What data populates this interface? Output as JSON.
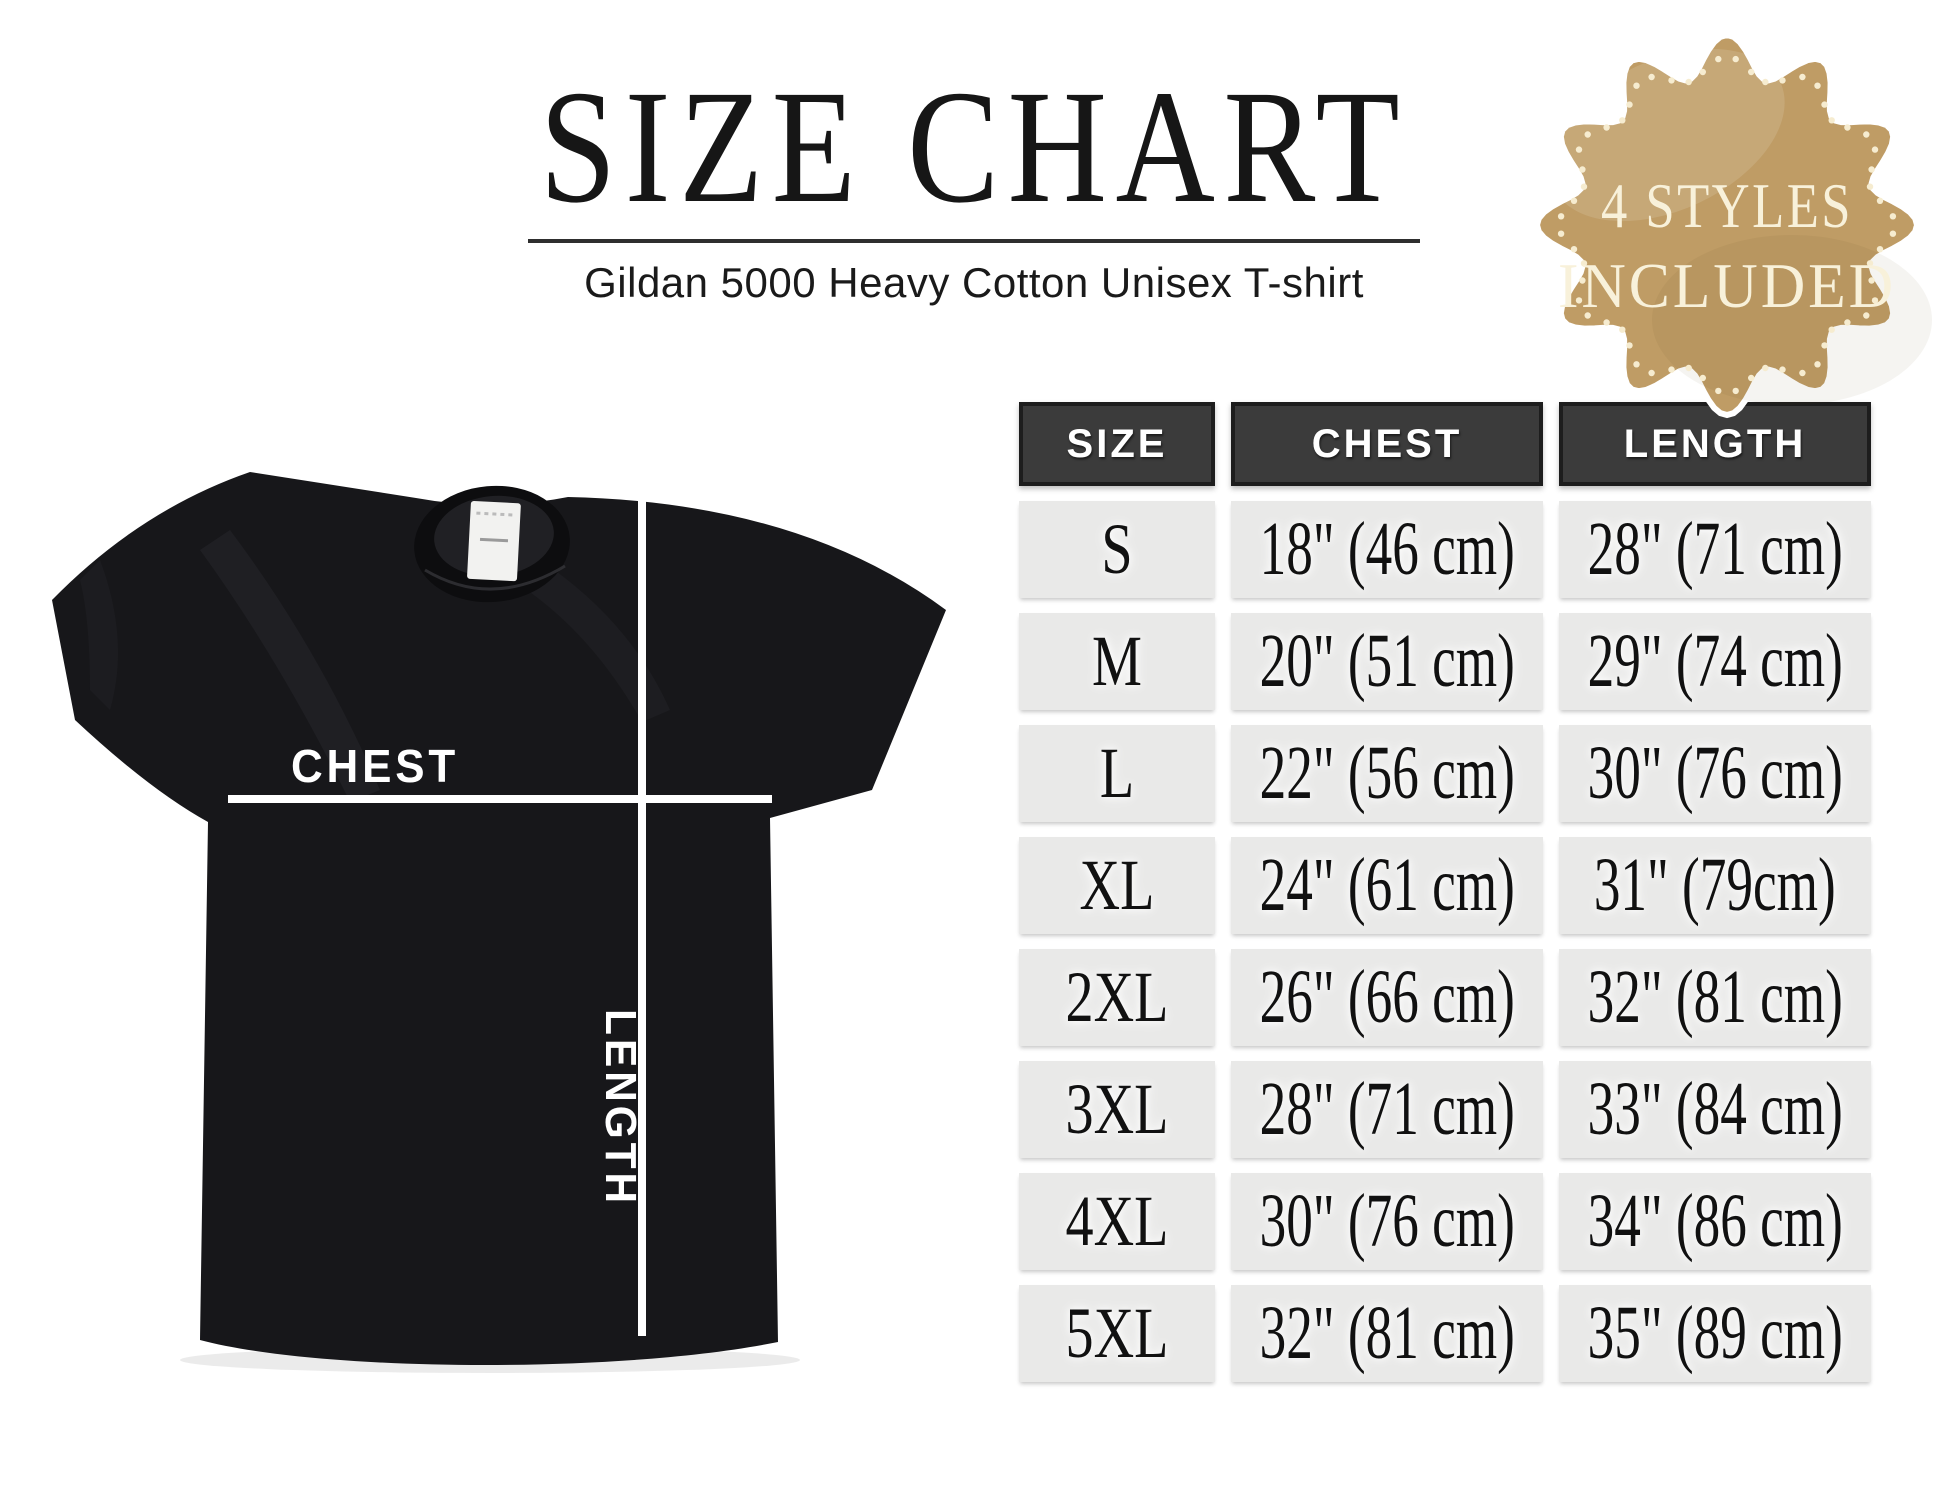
{
  "chart_data": {
    "type": "table",
    "title": "SIZE CHART",
    "subtitle": "Gildan 5000 Heavy Cotton Unisex T-shirt",
    "columns": [
      "SIZE",
      "CHEST",
      "LENGTH"
    ],
    "rows": [
      [
        "S",
        "18\" (46 cm)",
        "28\" (71 cm)"
      ],
      [
        "M",
        "20\" (51 cm)",
        "29\" (74 cm)"
      ],
      [
        "L",
        "22\" (56 cm)",
        "30\" (76 cm)"
      ],
      [
        "XL",
        "24\" (61 cm)",
        "31\" (79cm)"
      ],
      [
        "2XL",
        "26\" (66 cm)",
        "32\" (81 cm)"
      ],
      [
        "3XL",
        "28\" (71 cm)",
        "33\" (84 cm)"
      ],
      [
        "4XL",
        "30\" (76 cm)",
        "34\" (86 cm)"
      ],
      [
        "5XL",
        "32\" (81 cm)",
        "35\" (89 cm)"
      ]
    ]
  },
  "badge": {
    "line1": "4 STYLES",
    "line2": "INCLUDED"
  },
  "shirt": {
    "chest_label": "CHEST",
    "length_label": "LENGTH"
  },
  "theme": {
    "page_bg": "#ffffff",
    "text_dark": "#161616",
    "header_bg": "#3b3b3b",
    "header_border": "#1d1d1d",
    "header_text": "#ffffff",
    "cell_bg": "#e9e9e8",
    "cell_text": "#111111",
    "badge_fill": "#bf9c65",
    "badge_text": "#f8f1da",
    "badge_dots": "#f6ecd0",
    "shirt_color": "#17171a",
    "line_color": "#ffffff"
  }
}
